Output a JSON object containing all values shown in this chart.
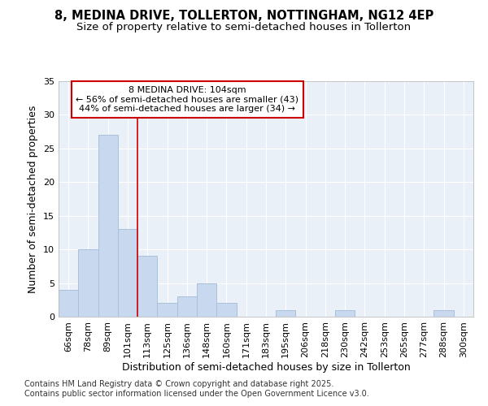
{
  "title_line1": "8, MEDINA DRIVE, TOLLERTON, NOTTINGHAM, NG12 4EP",
  "title_line2": "Size of property relative to semi-detached houses in Tollerton",
  "xlabel": "Distribution of semi-detached houses by size in Tollerton",
  "ylabel": "Number of semi-detached properties",
  "categories": [
    "66sqm",
    "78sqm",
    "89sqm",
    "101sqm",
    "113sqm",
    "125sqm",
    "136sqm",
    "148sqm",
    "160sqm",
    "171sqm",
    "183sqm",
    "195sqm",
    "206sqm",
    "218sqm",
    "230sqm",
    "242sqm",
    "253sqm",
    "265sqm",
    "277sqm",
    "288sqm",
    "300sqm"
  ],
  "values": [
    4,
    10,
    27,
    13,
    9,
    2,
    3,
    5,
    2,
    0,
    0,
    1,
    0,
    0,
    1,
    0,
    0,
    0,
    0,
    1,
    0
  ],
  "bar_color": "#c8d8ef",
  "bar_edge_color": "#aabfdb",
  "background_color": "#eaf0f8",
  "grid_color": "#ffffff",
  "annotation_text": "8 MEDINA DRIVE: 104sqm\n← 56% of semi-detached houses are smaller (43)\n44% of semi-detached houses are larger (34) →",
  "annotation_box_color": "#ffffff",
  "annotation_border_color": "#cc0000",
  "vline_x": 3.5,
  "vline_color": "#cc0000",
  "ylim": [
    0,
    35
  ],
  "yticks": [
    0,
    5,
    10,
    15,
    20,
    25,
    30,
    35
  ],
  "footnote": "Contains HM Land Registry data © Crown copyright and database right 2025.\nContains public sector information licensed under the Open Government Licence v3.0.",
  "title_fontsize": 10.5,
  "subtitle_fontsize": 9.5,
  "axis_label_fontsize": 9,
  "tick_fontsize": 8,
  "annotation_fontsize": 8,
  "footnote_fontsize": 7
}
